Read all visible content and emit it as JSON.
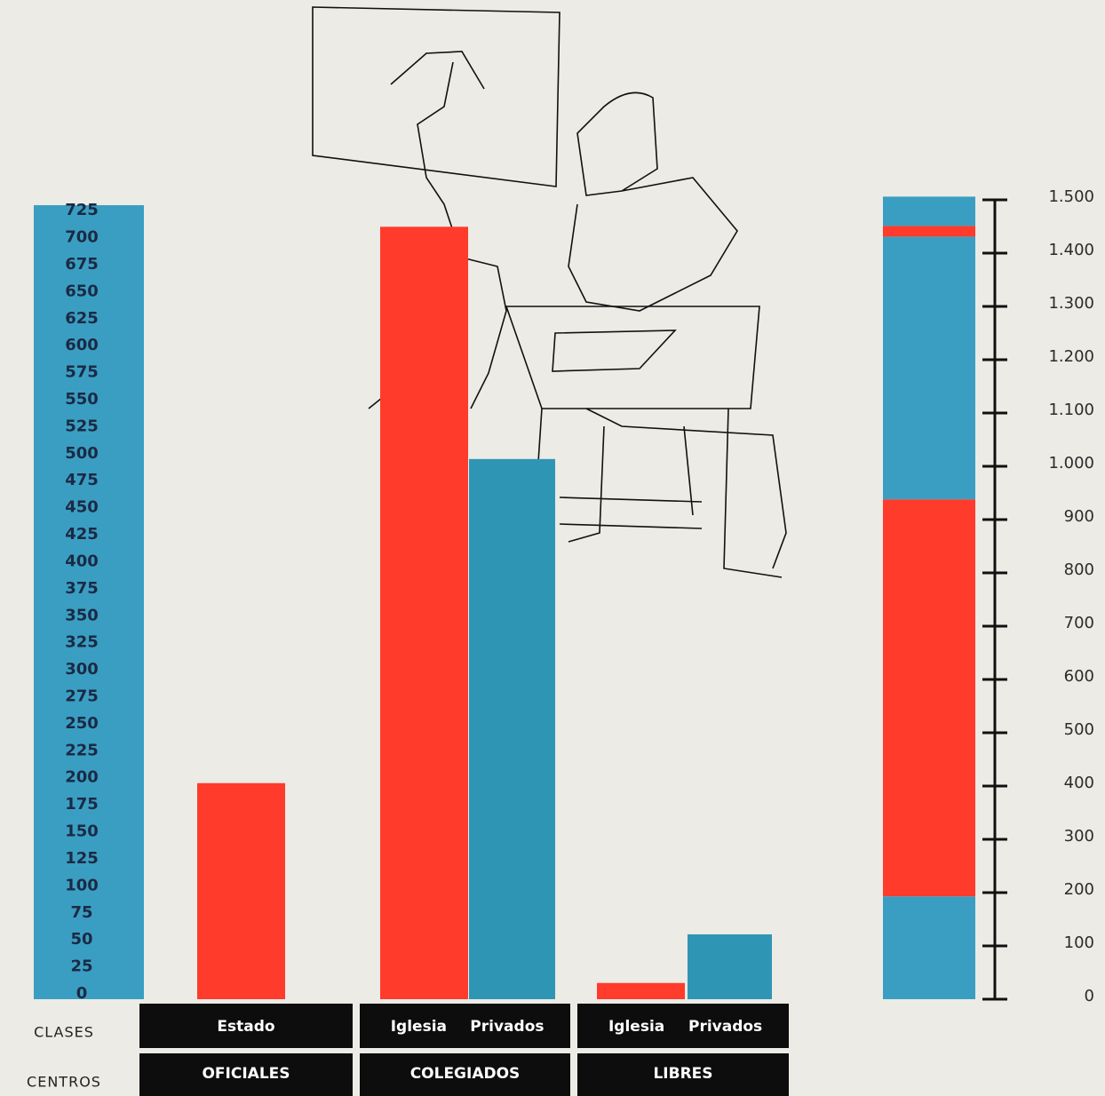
{
  "chart_data": [
    {
      "type": "bar",
      "ylim": [
        0,
        735
      ],
      "yticks": [
        0,
        25,
        50,
        75,
        100,
        125,
        150,
        175,
        200,
        225,
        250,
        275,
        300,
        325,
        350,
        375,
        400,
        425,
        450,
        475,
        500,
        525,
        550,
        575,
        600,
        625,
        650,
        675,
        700,
        725
      ],
      "axis_color": "#3a9ec2",
      "row_labels": [
        "CLASES",
        "CENTROS"
      ],
      "groups": [
        {
          "name": "OFICIALES",
          "categories": [
            "Estado"
          ],
          "values": [
            200
          ],
          "colors": [
            "#ff3b2b"
          ]
        },
        {
          "name": "COLEGIADOS",
          "categories": [
            "Iglesia",
            "Privados"
          ],
          "values": [
            715,
            500
          ],
          "colors": [
            "#ff3b2b",
            "#2f95b5"
          ]
        },
        {
          "name": "LIBRES",
          "categories": [
            "Iglesia",
            "Privados"
          ],
          "values": [
            15,
            60
          ],
          "colors": [
            "#ff3b2b",
            "#2f95b5"
          ]
        }
      ]
    },
    {
      "type": "stacked-bar",
      "ylim": [
        0,
        1500
      ],
      "yticks": [
        0,
        100,
        200,
        300,
        400,
        500,
        600,
        700,
        800,
        900,
        {
          "value": 1000,
          "label": "1.000"
        },
        {
          "value": 1100,
          "label": "1.100"
        },
        {
          "value": 1200,
          "label": "1.200"
        },
        {
          "value": 1300,
          "label": "1.300"
        },
        {
          "value": 1400,
          "label": "1.400"
        },
        {
          "value": 1500,
          "label": "1.500"
        }
      ],
      "segments": [
        {
          "value": 193,
          "color": "#3a9ec2"
        },
        {
          "value": 745,
          "color": "#ff3b2b"
        },
        {
          "value": 493,
          "color": "#3a9ec2"
        },
        {
          "value": 20,
          "color": "#ff3b2b"
        },
        {
          "value": 55,
          "color": "#3a9ec2"
        }
      ]
    }
  ]
}
